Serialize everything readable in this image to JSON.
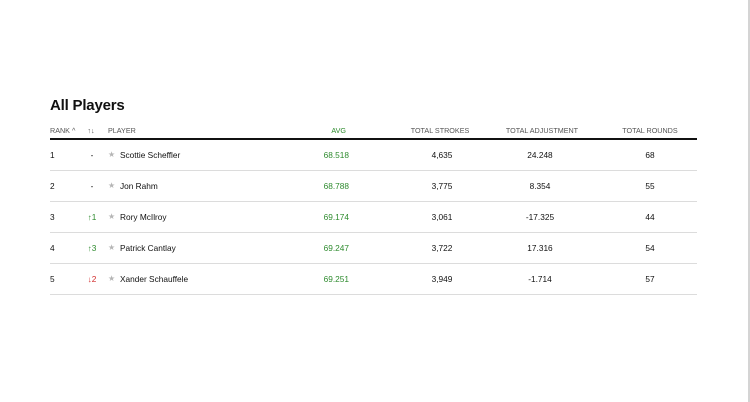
{
  "page": {
    "title": "All Players"
  },
  "table": {
    "headers": {
      "rank": "RANK",
      "rank_sort_icon": "^",
      "movement": "↑↓",
      "player": "PLAYER",
      "avg": "AVG",
      "total_strokes": "TOTAL STROKES",
      "total_adjustment": "TOTAL ADJUSTMENT",
      "total_rounds": "TOTAL ROUNDS"
    },
    "rows": [
      {
        "rank": "1",
        "movement": "-",
        "player": "Scottie Scheffler",
        "avg": "68.518",
        "total_strokes": "4,635",
        "total_adjustment": "24.248",
        "total_rounds": "68"
      },
      {
        "rank": "2",
        "movement": "-",
        "player": "Jon Rahm",
        "avg": "68.788",
        "total_strokes": "3,775",
        "total_adjustment": "8.354",
        "total_rounds": "55"
      },
      {
        "rank": "3",
        "movement": "↑1",
        "player": "Rory McIlroy",
        "avg": "69.174",
        "total_strokes": "3,061",
        "total_adjustment": "-17.325",
        "total_rounds": "44"
      },
      {
        "rank": "4",
        "movement": "↑3",
        "player": "Patrick Cantlay",
        "avg": "69.247",
        "total_strokes": "3,722",
        "total_adjustment": "17.316",
        "total_rounds": "54"
      },
      {
        "rank": "5",
        "movement": "↓2",
        "player": "Xander Schauffele",
        "avg": "69.251",
        "total_strokes": "3,949",
        "total_adjustment": "-1.714",
        "total_rounds": "57"
      }
    ]
  },
  "colors": {
    "up": "#2e8b2e",
    "down": "#d12a2a",
    "avg_text": "#2e8b2e",
    "divider": "#dcdcdc",
    "star": "#b5b5b5"
  },
  "icons": {
    "star": "star-icon",
    "sort": "sort-asc-icon"
  }
}
